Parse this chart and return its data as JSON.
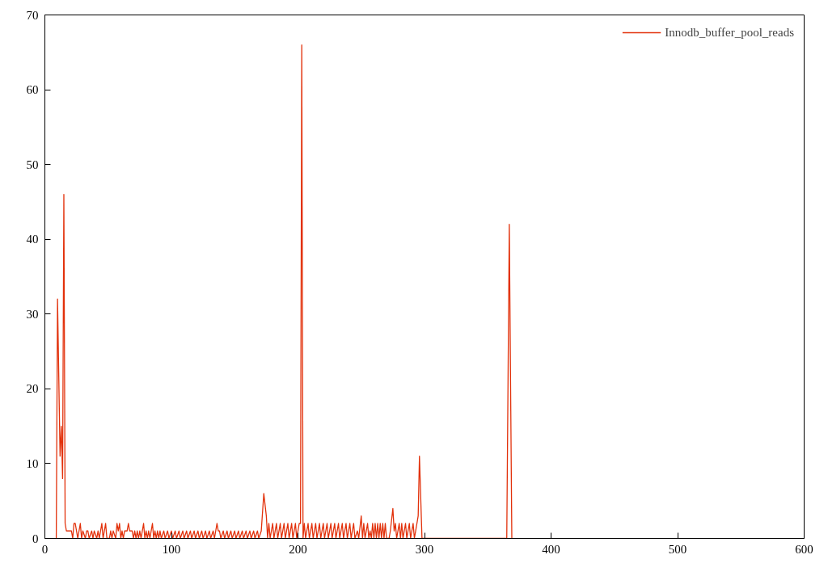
{
  "chart_data": {
    "type": "line",
    "x": [
      9,
      10,
      12,
      13,
      14,
      15,
      16,
      17,
      21,
      22,
      23,
      24,
      25,
      26,
      28,
      29,
      30,
      32,
      33,
      34,
      35,
      37,
      38,
      39,
      41,
      42,
      43,
      44,
      45,
      46,
      47,
      48,
      49,
      51,
      52,
      53,
      54,
      56,
      57,
      58,
      59,
      60,
      61,
      62,
      63,
      64,
      65,
      66,
      67,
      69,
      70,
      71,
      72,
      73,
      74,
      75,
      76,
      77,
      78,
      79,
      80,
      81,
      82,
      83,
      84,
      85,
      86,
      87,
      88,
      89,
      90,
      91,
      92,
      94,
      95,
      97,
      98,
      100,
      101,
      103,
      104,
      106,
      107,
      109,
      110,
      112,
      113,
      115,
      116,
      118,
      119,
      121,
      122,
      124,
      125,
      127,
      128,
      130,
      131,
      133,
      134,
      135,
      136,
      137,
      138,
      139,
      141,
      142,
      144,
      145,
      147,
      148,
      150,
      151,
      153,
      154,
      156,
      157,
      159,
      160,
      162,
      163,
      165,
      166,
      168,
      169,
      171,
      173,
      175,
      176,
      177,
      178,
      180,
      181,
      183,
      184,
      186,
      187,
      189,
      190,
      192,
      193,
      195,
      196,
      198,
      199,
      201,
      202,
      203,
      204,
      205,
      206,
      208,
      209,
      211,
      212,
      214,
      215,
      217,
      218,
      220,
      221,
      223,
      224,
      226,
      227,
      229,
      230,
      232,
      233,
      235,
      236,
      238,
      239,
      241,
      242,
      244,
      245,
      247,
      248,
      250,
      251,
      252,
      253,
      254,
      255,
      256,
      257,
      258,
      259,
      260,
      261,
      262,
      263,
      264,
      265,
      266,
      267,
      268,
      269,
      270,
      272,
      273,
      275,
      276,
      277,
      278,
      280,
      281,
      282,
      283,
      285,
      286,
      288,
      289,
      291,
      292,
      294,
      295,
      296,
      298,
      365,
      367,
      369
    ],
    "series": [
      {
        "name": "Innodb_buffer_pool_reads",
        "color": "#e2310b",
        "values": [
          0,
          32,
          11,
          15,
          8,
          46,
          2,
          1,
          1,
          0,
          2,
          2,
          1,
          0,
          2,
          0,
          1,
          0,
          1,
          1,
          0,
          1,
          0,
          1,
          0,
          1,
          0,
          1,
          2,
          0,
          1,
          2,
          0,
          0,
          1,
          0,
          1,
          0,
          2,
          1,
          2,
          0,
          1,
          0,
          1,
          1,
          1,
          2,
          1,
          1,
          0,
          1,
          0,
          1,
          0,
          1,
          0,
          1,
          2,
          0,
          1,
          0,
          1,
          0,
          1,
          2,
          0,
          1,
          0,
          1,
          0,
          1,
          0,
          1,
          0,
          1,
          0,
          1,
          0,
          1,
          0,
          1,
          0,
          1,
          0,
          1,
          0,
          1,
          0,
          1,
          0,
          1,
          0,
          1,
          0,
          1,
          0,
          1,
          0,
          1,
          0,
          1,
          2,
          1,
          1,
          0,
          1,
          0,
          1,
          0,
          1,
          0,
          1,
          0,
          1,
          0,
          1,
          0,
          1,
          0,
          1,
          0,
          1,
          0,
          1,
          0,
          1,
          6,
          3,
          0,
          2,
          0,
          2,
          0,
          2,
          0,
          2,
          0,
          2,
          0,
          2,
          0,
          2,
          0,
          2,
          0,
          2,
          2,
          66,
          0,
          2,
          0,
          2,
          0,
          2,
          0,
          2,
          0,
          2,
          0,
          2,
          0,
          2,
          0,
          2,
          0,
          2,
          0,
          2,
          0,
          2,
          0,
          2,
          0,
          2,
          0,
          2,
          0,
          1,
          0,
          3,
          0,
          2,
          0,
          1,
          2,
          0,
          1,
          0,
          2,
          0,
          2,
          0,
          2,
          0,
          2,
          0,
          2,
          0,
          2,
          0,
          0,
          1,
          4,
          1,
          2,
          0,
          2,
          0,
          2,
          0,
          2,
          0,
          2,
          0,
          2,
          0,
          2,
          3,
          11,
          0,
          0,
          42,
          0
        ]
      }
    ],
    "xlim": [
      0,
      600
    ],
    "ylim": [
      0,
      70
    ],
    "xticks": [
      0,
      100,
      200,
      300,
      400,
      500,
      600
    ],
    "yticks": [
      0,
      10,
      20,
      30,
      40,
      50,
      60,
      70
    ],
    "legend": "top right"
  }
}
